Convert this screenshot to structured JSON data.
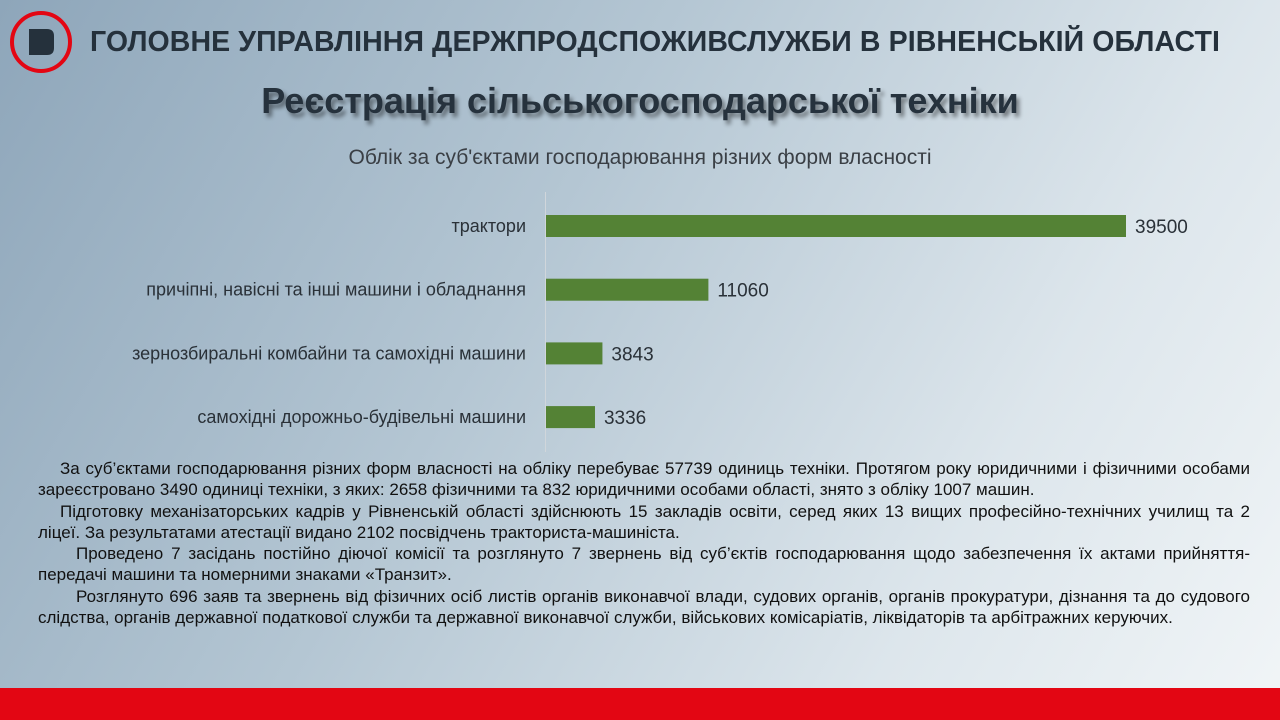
{
  "header": {
    "organization": "ГОЛОВНЕ УПРАВЛІННЯ ДЕРЖПРОДСПОЖИВСЛУЖБИ В РІВНЕНСЬКІЙ ОБЛАСТІ",
    "title": "Реєстрація сільськогосподарської техніки",
    "logo_icon": "letter-d-logo-icon"
  },
  "colors": {
    "bar": "#548235",
    "accent": "#e30613"
  },
  "chart_data": {
    "type": "bar",
    "orientation": "horizontal",
    "title": "Облік за суб'єктами господарювання різних форм власності",
    "categories": [
      "трактори",
      "причіпні, навісні та інші машини і обладнання",
      "зернозбиральні комбайни та самохідні машини",
      "самохідні дорожньо-будівельні машини"
    ],
    "values": [
      39500,
      11060,
      3843,
      3336
    ],
    "data_labels": true,
    "grid": false
  },
  "paragraphs": [
    "За суб’єктами господарювання різних форм власності на обліку перебуває 57739 одиниць техніки. Протягом року юридичними і фізичними особами зареєстровано 3490 одиниці техніки, з яких: 2658 фізичними та 832 юридичними особами області, знято з обліку 1007 машин.",
    "Підготовку механізаторських кадрів у Рівненській області здійснюють 15 закладів освіти, серед яких 13 вищих професійно-технічних училищ та 2 ліцеї. За результатами атестації видано 2102 посвідчень тракториста-машиніста.",
    "Проведено 7 засідань постійно діючої комісії та розглянуто 7 звернень від суб’єктів господарювання щодо забезпечення їх актами прийняття-передачі машини та номерними знаками «Транзит».",
    "Розглянуто 696 заяв та звернень  від фізичних осіб листів органів виконавчої влади, судових органів, органів прокуратури, дізнання та до судового слідства, органів державної податкової служби та державної виконавчої служби, військових комісаріатів, ліквідаторів та арбітражних керуючих."
  ]
}
